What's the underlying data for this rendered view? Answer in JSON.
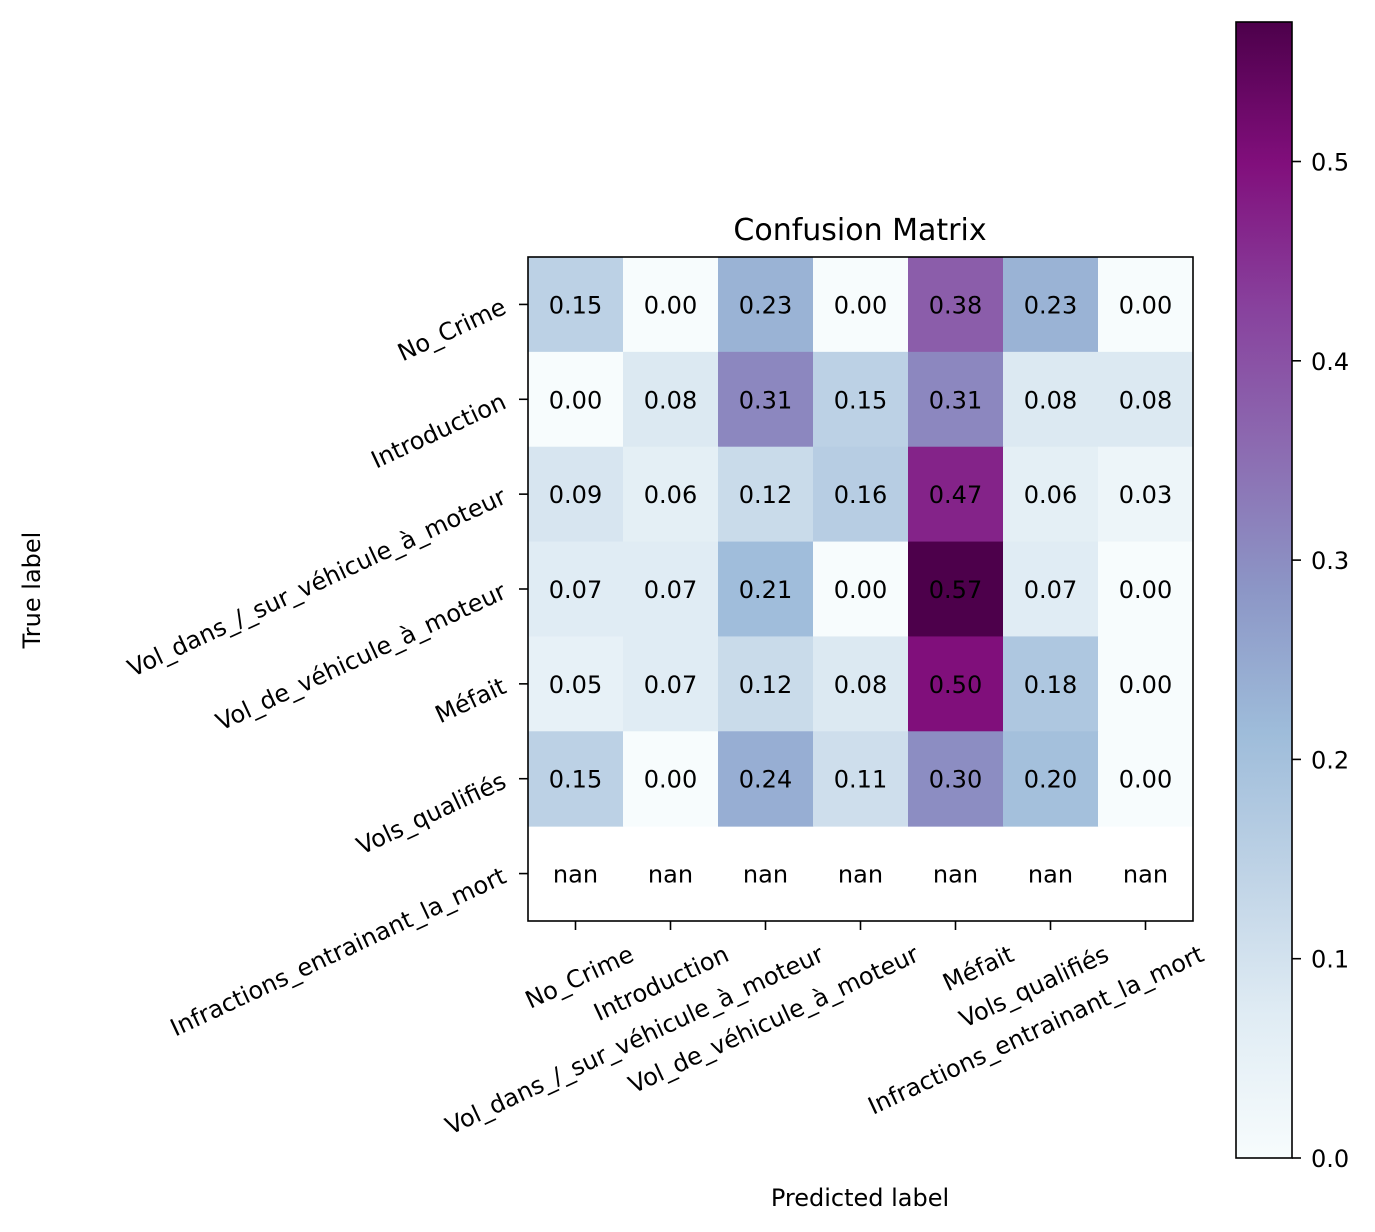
{
  "chart_data": {
    "type": "heatmap",
    "title": "Confusion Matrix",
    "xlabel": "Predicted label",
    "ylabel": "True label",
    "labels": [
      "No_Crime",
      "Introduction",
      "Vol_dans_/_sur_véhicule_à_moteur",
      "Vol_de_véhicule_à_moteur",
      "Méfait",
      "Vols_qualifiés",
      "Infractions_entrainant_la_mort"
    ],
    "matrix": [
      [
        0.15,
        0.0,
        0.23,
        0.0,
        0.38,
        0.23,
        0.0
      ],
      [
        0.0,
        0.08,
        0.31,
        0.15,
        0.31,
        0.08,
        0.08
      ],
      [
        0.09,
        0.06,
        0.12,
        0.16,
        0.47,
        0.06,
        0.03
      ],
      [
        0.07,
        0.07,
        0.21,
        0.0,
        0.57,
        0.07,
        0.0
      ],
      [
        0.05,
        0.07,
        0.12,
        0.08,
        0.5,
        0.18,
        0.0
      ],
      [
        0.15,
        0.0,
        0.24,
        0.11,
        0.3,
        0.2,
        0.0
      ],
      [
        null,
        null,
        null,
        null,
        null,
        null,
        null
      ]
    ],
    "cell_text": [
      [
        "0.15",
        "0.00",
        "0.23",
        "0.00",
        "0.38",
        "0.23",
        "0.00"
      ],
      [
        "0.00",
        "0.08",
        "0.31",
        "0.15",
        "0.31",
        "0.08",
        "0.08"
      ],
      [
        "0.09",
        "0.06",
        "0.12",
        "0.16",
        "0.47",
        "0.06",
        "0.03"
      ],
      [
        "0.07",
        "0.07",
        "0.21",
        "0.00",
        "0.57",
        "0.07",
        "0.00"
      ],
      [
        "0.05",
        "0.07",
        "0.12",
        "0.08",
        "0.50",
        "0.18",
        "0.00"
      ],
      [
        "0.15",
        "0.00",
        "0.24",
        "0.11",
        "0.30",
        "0.20",
        "0.00"
      ],
      [
        "nan",
        "nan",
        "nan",
        "nan",
        "nan",
        "nan",
        "nan"
      ]
    ],
    "colormap": "BuPu",
    "colorbar": {
      "range": [
        0.0,
        0.57
      ],
      "ticks": [
        0.0,
        0.1,
        0.2,
        0.3,
        0.4,
        0.5
      ],
      "tick_labels": [
        "0.0",
        "0.1",
        "0.2",
        "0.3",
        "0.4",
        "0.5"
      ]
    }
  }
}
